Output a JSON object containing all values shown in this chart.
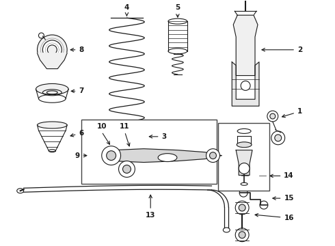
{
  "background_color": "#ffffff",
  "line_color": "#1a1a1a",
  "fig_width": 4.9,
  "fig_height": 3.6,
  "dpi": 100,
  "label_fontsize": 7.5,
  "lw": 0.8
}
